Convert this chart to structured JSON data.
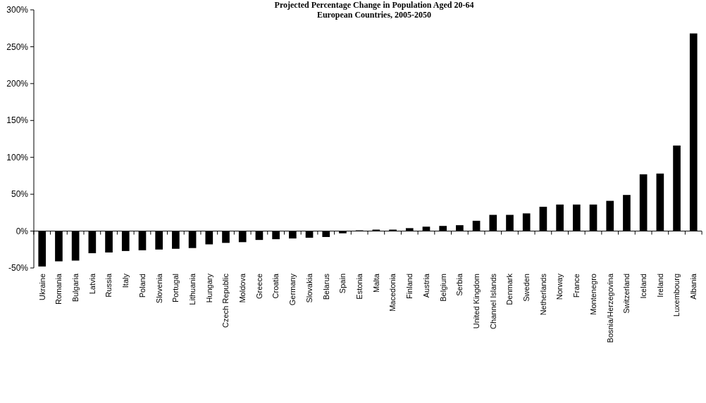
{
  "chart_data": {
    "type": "bar",
    "title": "Projected Percentage Change in Population Aged 20-64",
    "subtitle": "European Countries, 2005-2050",
    "categories": [
      "Ukraine",
      "Romania",
      "Bulgaria",
      "Latvia",
      "Russia",
      "Italy",
      "Poland",
      "Slovenia",
      "Portugal",
      "Lithuania",
      "Hungary",
      "Czech Republic",
      "Moldova",
      "Greece",
      "Croatia",
      "Germany",
      "Slovakia",
      "Belarus",
      "Spain",
      "Estonia",
      "Malta",
      "Macedonia",
      "Finland",
      "Austria",
      "Belgium",
      "Serbia",
      "United Kingdom",
      "Channel Islands",
      "Denmark",
      "Sweden",
      "Netherlands",
      "Norway",
      "France",
      "Montenegro",
      "Bosnia/Herzegovina",
      "Switzerland",
      "Iceland",
      "Ireland",
      "Luxembourg",
      "Albania"
    ],
    "values": [
      -48,
      -41,
      -40,
      -30,
      -29,
      -27,
      -26,
      -25,
      -24,
      -23,
      -18,
      -16,
      -15,
      -12,
      -11,
      -10,
      -9,
      -8,
      -3,
      1,
      2,
      2,
      4,
      6,
      7,
      8,
      14,
      22,
      22,
      24,
      33,
      36,
      36,
      36,
      41,
      49,
      77,
      78,
      116,
      268
    ],
    "color": "#000000",
    "ylim": [
      -50,
      300
    ],
    "yticks": [
      {
        "value": -50,
        "label": "-50%"
      },
      {
        "value": 0,
        "label": "0%"
      },
      {
        "value": 50,
        "label": "50%"
      },
      {
        "value": 100,
        "label": "100%"
      },
      {
        "value": 150,
        "label": "150%"
      },
      {
        "value": 200,
        "label": "200%"
      },
      {
        "value": 250,
        "label": "250%"
      },
      {
        "value": 300,
        "label": "300%"
      }
    ]
  }
}
